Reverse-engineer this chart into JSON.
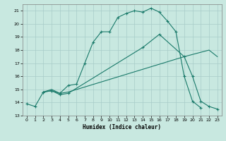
{
  "xlabel": "Humidex (Indice chaleur)",
  "background_color": "#c8e8e0",
  "grid_color": "#a8ccc8",
  "line_color": "#1a7a6a",
  "xlim": [
    -0.5,
    23.5
  ],
  "ylim": [
    13,
    21.5
  ],
  "yticks": [
    13,
    14,
    15,
    16,
    17,
    18,
    19,
    20,
    21
  ],
  "xticks": [
    0,
    1,
    2,
    3,
    4,
    5,
    6,
    7,
    8,
    9,
    10,
    11,
    12,
    13,
    14,
    15,
    16,
    17,
    18,
    19,
    20,
    21,
    22,
    23
  ],
  "line1_x": [
    0,
    1,
    2,
    3,
    4,
    5,
    6,
    7,
    8,
    9,
    10,
    11,
    12,
    13,
    14,
    15,
    16,
    17,
    18,
    19,
    20,
    21
  ],
  "line1_y": [
    13.9,
    13.7,
    14.8,
    14.9,
    14.7,
    15.3,
    15.4,
    17.0,
    18.6,
    19.4,
    19.4,
    20.5,
    20.8,
    21.0,
    20.9,
    21.2,
    20.9,
    20.2,
    19.4,
    16.0,
    14.1,
    13.6
  ],
  "line2_x": [
    2,
    3,
    4,
    5,
    14,
    16,
    19,
    20,
    21,
    22,
    23
  ],
  "line2_y": [
    14.8,
    14.9,
    14.6,
    14.7,
    18.2,
    19.2,
    17.5,
    16.0,
    14.1,
    13.7,
    13.5
  ],
  "line3_x": [
    2,
    3,
    4,
    5,
    19,
    22,
    23
  ],
  "line3_y": [
    14.8,
    15.0,
    14.7,
    14.8,
    17.5,
    18.0,
    17.5
  ]
}
